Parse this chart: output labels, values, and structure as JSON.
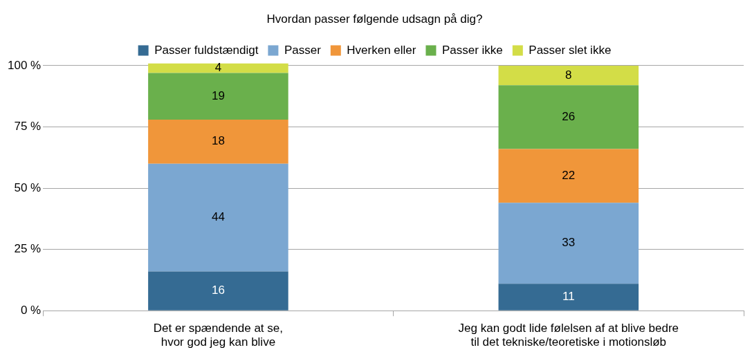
{
  "chart_data": {
    "type": "bar",
    "title": "Hvordan passer følgende udsagn på dig?",
    "categories": [
      "Det er spændende at se, hvor god jeg kan blive",
      "Jeg kan godt lide følelsen af at blive bedre til det tekniske/teoretiske i motionsløb"
    ],
    "series": [
      {
        "name": "Passer fuldstændigt",
        "color": "#356b93",
        "values": [
          16,
          11
        ]
      },
      {
        "name": "Passer",
        "color": "#7ba7d1",
        "values": [
          44,
          33
        ]
      },
      {
        "name": "Hverken eller",
        "color": "#f0963a",
        "values": [
          18,
          22
        ]
      },
      {
        "name": "Passer ikke",
        "color": "#6ab04c",
        "values": [
          19,
          26
        ]
      },
      {
        "name": "Passer slet ikke",
        "color": "#d3dd47",
        "values": [
          4,
          8
        ]
      }
    ],
    "stacked": true,
    "ylim": [
      0,
      101
    ],
    "yticks": [
      {
        "value": 0,
        "label": "0 %"
      },
      {
        "value": 25,
        "label": "25 %"
      },
      {
        "value": 50,
        "label": "50 %"
      },
      {
        "value": 75,
        "label": "75 %"
      },
      {
        "value": 100,
        "label": "100 %"
      }
    ],
    "grid": "y",
    "legend": "top",
    "data_labels": true
  }
}
